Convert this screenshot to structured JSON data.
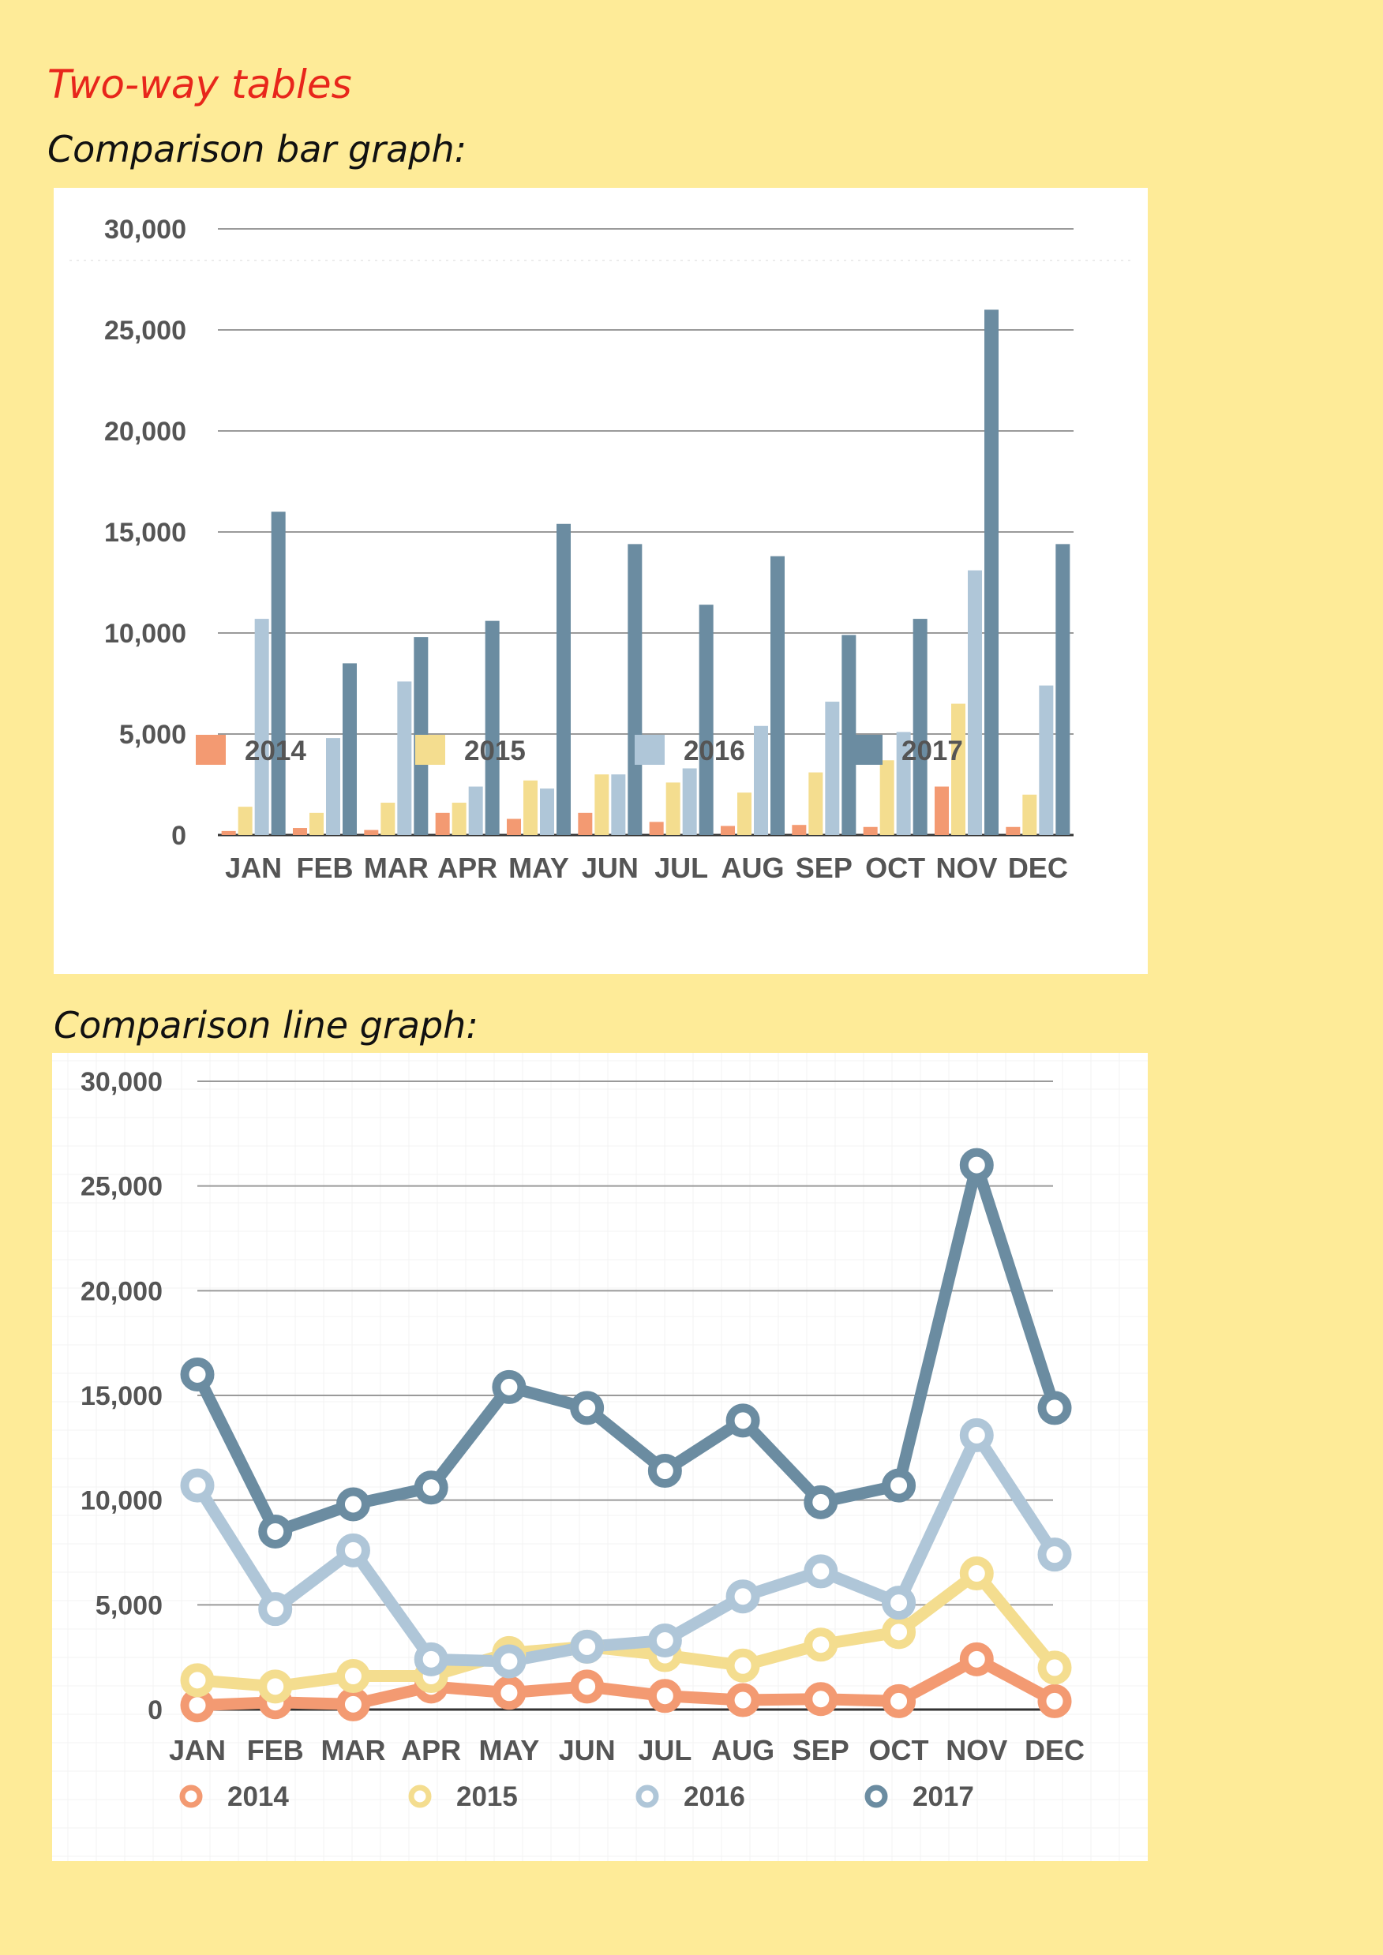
{
  "page": {
    "title": "Two-way tables",
    "bar_heading": "Comparison bar graph:",
    "line_heading": "Comparison line graph:"
  },
  "colors": {
    "2014": "#F39A72",
    "2015": "#F4DD8F",
    "2016": "#AFC6D8",
    "2017": "#6B8CA1",
    "background": "#FEEB98"
  },
  "chart_data": [
    {
      "type": "bar",
      "title": "",
      "xlabel": "",
      "ylabel": "",
      "categories": [
        "JAN",
        "FEB",
        "MAR",
        "APR",
        "MAY",
        "JUN",
        "JUL",
        "AUG",
        "SEP",
        "OCT",
        "NOV",
        "DEC"
      ],
      "y_ticks": [
        "0",
        "5,000",
        "10,000",
        "15,000",
        "20,000",
        "25,000",
        "30,000"
      ],
      "ylim": [
        0,
        30000
      ],
      "grid": true,
      "legend": "bottom",
      "series": [
        {
          "name": "2014",
          "values": [
            200,
            350,
            250,
            1100,
            800,
            1100,
            650,
            450,
            500,
            400,
            2400,
            400
          ]
        },
        {
          "name": "2015",
          "values": [
            1400,
            1100,
            1600,
            1600,
            2700,
            3000,
            2600,
            2100,
            3100,
            3700,
            6500,
            2000
          ]
        },
        {
          "name": "2016",
          "values": [
            10700,
            4800,
            7600,
            2400,
            2300,
            3000,
            3300,
            5400,
            6600,
            5100,
            13100,
            7400
          ]
        },
        {
          "name": "2017",
          "values": [
            16000,
            8500,
            9800,
            10600,
            15400,
            14400,
            11400,
            13800,
            9900,
            10700,
            26000,
            14400
          ]
        }
      ]
    },
    {
      "type": "line",
      "title": "",
      "xlabel": "",
      "ylabel": "",
      "categories": [
        "JAN",
        "FEB",
        "MAR",
        "APR",
        "MAY",
        "JUN",
        "JUL",
        "AUG",
        "SEP",
        "OCT",
        "NOV",
        "DEC"
      ],
      "y_ticks": [
        "0",
        "5,000",
        "10,000",
        "15,000",
        "20,000",
        "25,000",
        "30,000"
      ],
      "ylim": [
        0,
        30000
      ],
      "grid": true,
      "legend": "bottom",
      "series": [
        {
          "name": "2014",
          "values": [
            200,
            350,
            250,
            1100,
            800,
            1100,
            650,
            450,
            500,
            400,
            2400,
            400
          ]
        },
        {
          "name": "2015",
          "values": [
            1400,
            1100,
            1600,
            1600,
            2700,
            3000,
            2600,
            2100,
            3100,
            3700,
            6500,
            2000
          ]
        },
        {
          "name": "2016",
          "values": [
            10700,
            4800,
            7600,
            2400,
            2300,
            3000,
            3300,
            5400,
            6600,
            5100,
            13100,
            7400
          ]
        },
        {
          "name": "2017",
          "values": [
            16000,
            8500,
            9800,
            10600,
            15400,
            14400,
            11400,
            13800,
            9900,
            10700,
            26000,
            14400
          ]
        }
      ]
    }
  ]
}
